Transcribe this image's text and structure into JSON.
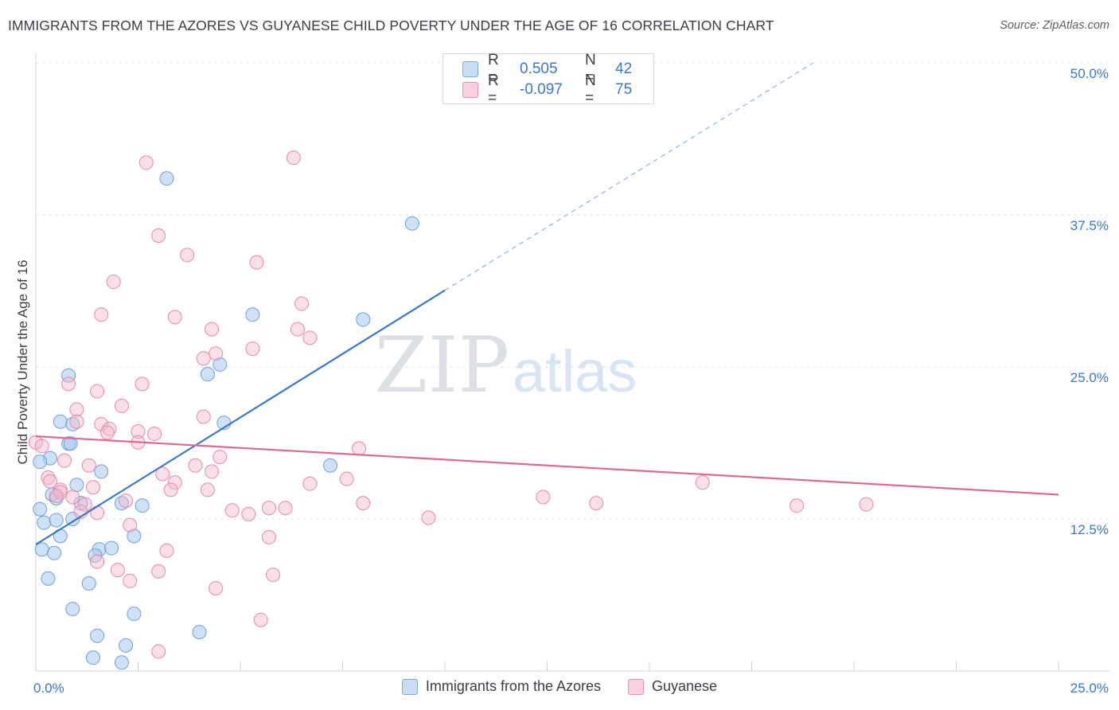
{
  "header": {
    "title": "IMMIGRANTS FROM THE AZORES VS GUYANESE CHILD POVERTY UNDER THE AGE OF 16 CORRELATION CHART",
    "source": "Source: ZipAtlas.com"
  },
  "watermark": {
    "zip": "ZIP",
    "atlas": "atlas"
  },
  "stats_box": {
    "rows": [
      {
        "r_label": "R =",
        "r_value": "0.505",
        "n_label": "N =",
        "n_value": "42",
        "color": "#a8c8f0"
      },
      {
        "r_label": "R =",
        "r_value": "-0.097",
        "n_label": "N =",
        "n_value": "75",
        "color": "#f5b8cb"
      }
    ]
  },
  "legend": {
    "items": [
      {
        "label": "Immigrants from the Azores",
        "color": "#a8c8f0"
      },
      {
        "label": "Guyanese",
        "color": "#f5b8cb"
      }
    ]
  },
  "chart_data": {
    "type": "scatter",
    "title": "IMMIGRANTS FROM THE AZORES VS GUYANESE CHILD POVERTY UNDER THE AGE OF 16 CORRELATION CHART",
    "ylabel": "Child Poverty Under the Age of 16",
    "xlim": [
      0,
      25
    ],
    "ylim": [
      0,
      50
    ],
    "x_tick_labels": [
      "0.0%",
      "25.0%"
    ],
    "y_ticks": [
      12.5,
      25.0,
      37.5,
      50.0
    ],
    "y_tick_labels": [
      "12.5%",
      "25.0%",
      "37.5%",
      "50.0%"
    ],
    "grid": true,
    "legend_position": "bottom-center",
    "series": [
      {
        "name": "Immigrants from the Azores",
        "color": "#3a78c8",
        "marker_fill": "#a8c8f0",
        "points": [
          [
            3.2,
            40.5
          ],
          [
            9.2,
            36.8
          ],
          [
            5.3,
            29.3
          ],
          [
            8.0,
            28.9
          ],
          [
            0.8,
            24.3
          ],
          [
            4.2,
            24.4
          ],
          [
            4.5,
            25.2
          ],
          [
            0.6,
            20.5
          ],
          [
            0.9,
            20.3
          ],
          [
            4.6,
            20.4
          ],
          [
            0.8,
            18.7
          ],
          [
            0.85,
            18.7
          ],
          [
            0.35,
            17.5
          ],
          [
            0.1,
            17.2
          ],
          [
            7.2,
            16.9
          ],
          [
            1.6,
            16.4
          ],
          [
            1.0,
            15.3
          ],
          [
            0.4,
            14.5
          ],
          [
            0.5,
            14.2
          ],
          [
            1.1,
            13.8
          ],
          [
            2.1,
            13.8
          ],
          [
            2.6,
            13.6
          ],
          [
            0.1,
            13.3
          ],
          [
            0.2,
            12.2
          ],
          [
            0.5,
            12.4
          ],
          [
            0.9,
            12.5
          ],
          [
            0.6,
            11.1
          ],
          [
            2.4,
            11.1
          ],
          [
            0.15,
            10.0
          ],
          [
            0.45,
            9.7
          ],
          [
            1.55,
            10.0
          ],
          [
            1.85,
            10.1
          ],
          [
            1.45,
            9.5
          ],
          [
            0.3,
            7.6
          ],
          [
            1.3,
            7.2
          ],
          [
            0.9,
            5.1
          ],
          [
            2.4,
            4.7
          ],
          [
            1.5,
            2.9
          ],
          [
            4.0,
            3.2
          ],
          [
            2.2,
            2.1
          ],
          [
            1.4,
            1.1
          ],
          [
            2.1,
            0.7
          ]
        ],
        "trend": {
          "x": [
            0,
            10
          ],
          "y": [
            10.4,
            31.3
          ],
          "dashed_x": [
            10,
            19
          ],
          "dashed_y": [
            31.3,
            50.0
          ]
        }
      },
      {
        "name": "Guyanese",
        "color": "#e06890",
        "marker_fill": "#f5b8cb",
        "points": [
          [
            6.3,
            42.2
          ],
          [
            2.7,
            41.8
          ],
          [
            3.0,
            35.8
          ],
          [
            3.7,
            34.2
          ],
          [
            5.4,
            33.6
          ],
          [
            1.9,
            32.0
          ],
          [
            6.5,
            30.2
          ],
          [
            1.6,
            29.3
          ],
          [
            3.4,
            29.1
          ],
          [
            4.3,
            28.1
          ],
          [
            6.4,
            28.1
          ],
          [
            6.7,
            27.4
          ],
          [
            5.3,
            26.5
          ],
          [
            4.4,
            26.1
          ],
          [
            4.1,
            25.7
          ],
          [
            0.8,
            23.6
          ],
          [
            1.5,
            23.0
          ],
          [
            2.6,
            23.6
          ],
          [
            2.1,
            21.8
          ],
          [
            1.0,
            21.5
          ],
          [
            1.0,
            20.5
          ],
          [
            4.1,
            20.9
          ],
          [
            1.6,
            20.3
          ],
          [
            1.8,
            19.9
          ],
          [
            1.75,
            19.6
          ],
          [
            2.5,
            19.7
          ],
          [
            2.9,
            19.5
          ],
          [
            0.0,
            18.8
          ],
          [
            0.15,
            18.5
          ],
          [
            2.5,
            18.8
          ],
          [
            7.9,
            18.3
          ],
          [
            0.7,
            17.3
          ],
          [
            4.5,
            17.6
          ],
          [
            1.3,
            16.9
          ],
          [
            3.9,
            16.9
          ],
          [
            4.3,
            16.4
          ],
          [
            3.1,
            16.2
          ],
          [
            0.3,
            15.9
          ],
          [
            0.35,
            15.6
          ],
          [
            7.6,
            15.8
          ],
          [
            3.4,
            15.5
          ],
          [
            6.7,
            15.4
          ],
          [
            16.3,
            15.5
          ],
          [
            0.6,
            14.9
          ],
          [
            1.4,
            15.1
          ],
          [
            0.6,
            14.7
          ],
          [
            3.3,
            14.9
          ],
          [
            4.2,
            14.9
          ],
          [
            0.5,
            14.4
          ],
          [
            12.4,
            14.3
          ],
          [
            1.2,
            13.7
          ],
          [
            2.2,
            14.0
          ],
          [
            8.0,
            13.8
          ],
          [
            13.7,
            13.8
          ],
          [
            18.6,
            13.6
          ],
          [
            20.3,
            13.7
          ],
          [
            5.7,
            13.4
          ],
          [
            6.1,
            13.4
          ],
          [
            1.1,
            13.1
          ],
          [
            1.5,
            13.0
          ],
          [
            4.8,
            13.2
          ],
          [
            5.2,
            12.9
          ],
          [
            9.6,
            12.6
          ],
          [
            2.3,
            12.0
          ],
          [
            5.7,
            11.0
          ],
          [
            3.2,
            9.9
          ],
          [
            2.0,
            8.3
          ],
          [
            3.0,
            8.2
          ],
          [
            5.8,
            7.9
          ],
          [
            2.3,
            7.4
          ],
          [
            4.4,
            6.8
          ],
          [
            5.5,
            4.2
          ],
          [
            3.0,
            1.6
          ],
          [
            1.5,
            9.0
          ],
          [
            0.9,
            14.3
          ]
        ],
        "trend": {
          "x": [
            0,
            25
          ],
          "y": [
            19.3,
            14.5
          ]
        }
      }
    ]
  }
}
